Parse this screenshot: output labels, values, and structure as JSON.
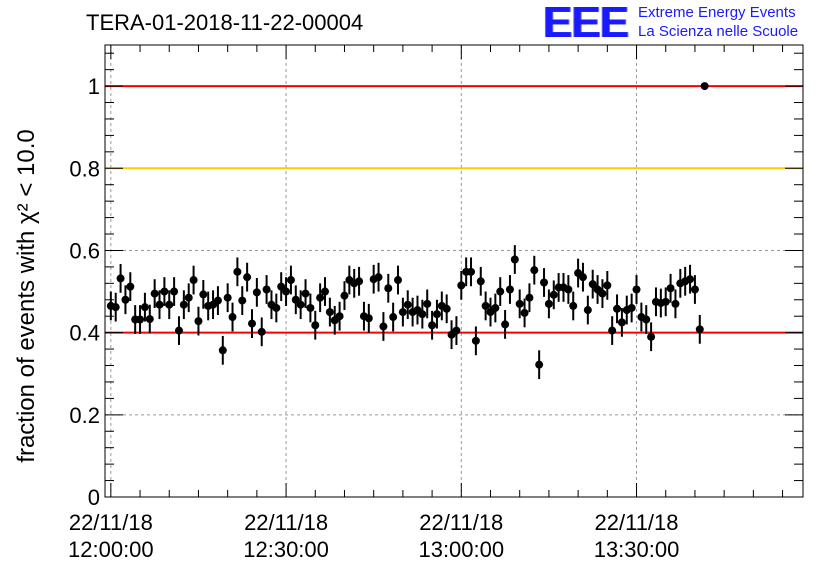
{
  "chart_data": {
    "type": "scatter",
    "title": "TERA-01-2018-11-22-00004",
    "ylabel": "fraction of events with χ² < 10.0",
    "ylim": [
      0,
      1.1
    ],
    "yticks": [
      0,
      0.2,
      0.4,
      0.6,
      0.8,
      1
    ],
    "ytick_labels": [
      "0",
      "0.2",
      "0.4",
      "0.6",
      "0.8",
      "1"
    ],
    "xtick_labels": [
      [
        "22/11/18",
        "12:00:00"
      ],
      [
        "22/11/18",
        "12:30:00"
      ],
      [
        "22/11/18",
        "13:00:00"
      ],
      [
        "22/11/18",
        "13:30:00"
      ]
    ],
    "xlim_minutes": [
      -1,
      118.5
    ],
    "xtick_minutes": [
      0,
      30,
      60,
      90
    ],
    "grid": true,
    "reference_lines": [
      {
        "y": 1.0,
        "color": "#ff0000"
      },
      {
        "y": 0.8,
        "color": "#ffcc00"
      },
      {
        "y": 0.4,
        "color": "#ff0000"
      }
    ],
    "marker_color": "#000000",
    "series": [
      {
        "x_step_minutes": 0.8333,
        "values": [
          0.465,
          0.462,
          0.532,
          0.48,
          0.512,
          0.432,
          0.432,
          0.462,
          0.433,
          0.495,
          0.468,
          0.5,
          0.468,
          0.5,
          0.405,
          0.468,
          0.485,
          0.528,
          0.428,
          0.493,
          0.465,
          0.468,
          0.478,
          0.357,
          0.485,
          0.438,
          0.548,
          0.478,
          0.535,
          0.422,
          0.498,
          0.402,
          0.505,
          0.468,
          0.46,
          0.512,
          0.5,
          0.528,
          0.48,
          0.468,
          0.495,
          0.46,
          0.418,
          0.485,
          0.5,
          0.45,
          0.43,
          0.44,
          0.49,
          0.528,
          0.52,
          0.525,
          0.44,
          0.435,
          0.53,
          0.535,
          0.415,
          0.508,
          0.438,
          0.528,
          0.45,
          0.468,
          0.45,
          0.455,
          0.445,
          0.47,
          0.418,
          0.445,
          0.465,
          0.458,
          0.395,
          0.405,
          0.515,
          0.548,
          0.548,
          0.38,
          0.525,
          0.465,
          0.45,
          0.46,
          0.5,
          0.42,
          0.505,
          0.578,
          0.47,
          0.448,
          0.485,
          0.552,
          0.322,
          0.522,
          0.47,
          0.492,
          0.51,
          0.51,
          0.505,
          0.465,
          0.545,
          0.535,
          0.455,
          0.518,
          0.505,
          0.495,
          0.515,
          0.405,
          0.458,
          0.425,
          0.455,
          0.46,
          0.505,
          0.438,
          0.432,
          0.39,
          0.475,
          0.472,
          0.475,
          0.508,
          0.47,
          0.52,
          0.525,
          0.53,
          0.505,
          0.408,
          1.0
        ],
        "errors": [
          0.035,
          0.035,
          0.035,
          0.035,
          0.035,
          0.035,
          0.035,
          0.035,
          0.035,
          0.035,
          0.035,
          0.035,
          0.035,
          0.035,
          0.035,
          0.035,
          0.035,
          0.035,
          0.035,
          0.035,
          0.035,
          0.035,
          0.035,
          0.035,
          0.035,
          0.035,
          0.035,
          0.035,
          0.035,
          0.035,
          0.035,
          0.035,
          0.035,
          0.035,
          0.035,
          0.035,
          0.035,
          0.035,
          0.035,
          0.035,
          0.035,
          0.035,
          0.035,
          0.035,
          0.035,
          0.035,
          0.035,
          0.035,
          0.035,
          0.035,
          0.035,
          0.035,
          0.035,
          0.035,
          0.035,
          0.035,
          0.035,
          0.035,
          0.035,
          0.035,
          0.035,
          0.035,
          0.035,
          0.035,
          0.035,
          0.035,
          0.035,
          0.035,
          0.035,
          0.035,
          0.035,
          0.035,
          0.035,
          0.035,
          0.035,
          0.035,
          0.035,
          0.035,
          0.035,
          0.035,
          0.035,
          0.035,
          0.035,
          0.035,
          0.035,
          0.035,
          0.035,
          0.035,
          0.035,
          0.035,
          0.035,
          0.035,
          0.035,
          0.035,
          0.035,
          0.035,
          0.035,
          0.035,
          0.035,
          0.035,
          0.035,
          0.035,
          0.035,
          0.035,
          0.035,
          0.035,
          0.035,
          0.035,
          0.035,
          0.035,
          0.035,
          0.035,
          0.035,
          0.035,
          0.035,
          0.035,
          0.035,
          0.035,
          0.035,
          0.035,
          0.035,
          0.035,
          0.0
        ]
      }
    ]
  },
  "logo": {
    "text": "EEE",
    "line1": "Extreme Energy Events",
    "line2": "La Scienza nelle Scuole",
    "color": "#1a1aff"
  }
}
